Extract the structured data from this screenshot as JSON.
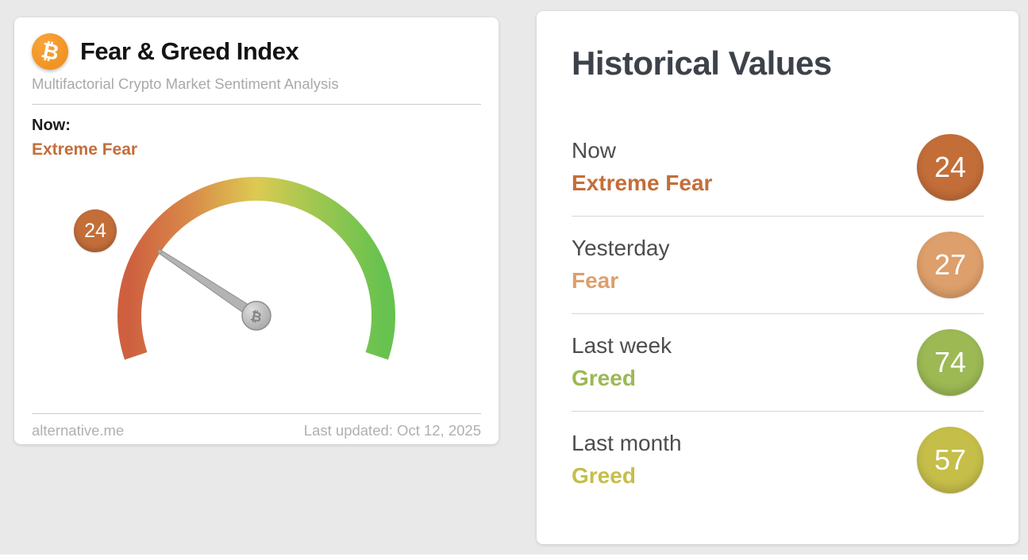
{
  "page": {
    "background": "#e9e9e9"
  },
  "gauge_card": {
    "bitcoin_symbol": "₿",
    "title": "Fear & Greed Index",
    "subtitle": "Multifactorial Crypto Market Sentiment Analysis",
    "now_label": "Now:",
    "now_sentiment": "Extreme Fear",
    "value": "24",
    "sentiment_color": "#c36e39",
    "footer_left": "alternative.me",
    "footer_right": "Last updated: Oct 12, 2025"
  },
  "historical_card": {
    "title": "Historical Values",
    "rows": [
      {
        "label": "Now",
        "sentiment": "Extreme Fear",
        "value": "24",
        "color": "#c36e39"
      },
      {
        "label": "Yesterday",
        "sentiment": "Fear",
        "value": "27",
        "color": "#dd9f6b"
      },
      {
        "label": "Last week",
        "sentiment": "Greed",
        "value": "74",
        "color": "#9cb954"
      },
      {
        "label": "Last month",
        "sentiment": "Greed",
        "value": "57",
        "color": "#c5be49"
      }
    ]
  },
  "chart_data": {
    "type": "gauge",
    "title": "Fear & Greed Index",
    "value": 24,
    "min": 0,
    "max": 100,
    "current_label": "Extreme Fear",
    "last_updated": "Oct 12, 2025",
    "source": "alternative.me",
    "gradient": [
      "#ce6040",
      "#d98a49",
      "#dcca52",
      "#9fc750",
      "#67c24f"
    ],
    "historical": [
      {
        "period": "Now",
        "sentiment": "Extreme Fear",
        "value": 24
      },
      {
        "period": "Yesterday",
        "sentiment": "Fear",
        "value": 27
      },
      {
        "period": "Last week",
        "sentiment": "Greed",
        "value": 74
      },
      {
        "period": "Last month",
        "sentiment": "Greed",
        "value": 57
      }
    ]
  }
}
